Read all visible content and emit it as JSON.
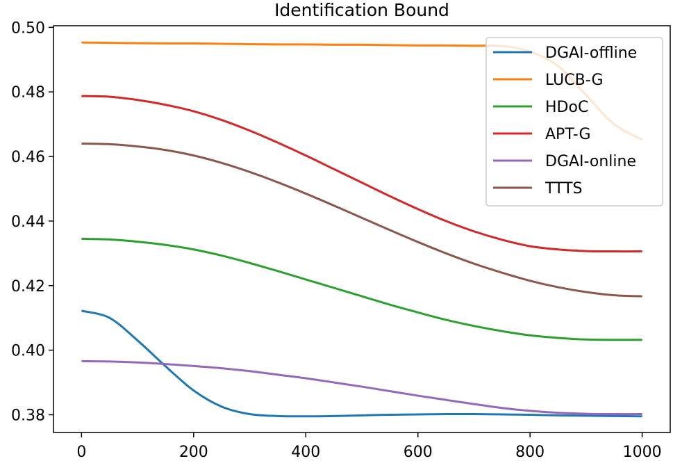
{
  "chart_data": {
    "type": "line",
    "title": "Identification Bound",
    "xlabel": "",
    "ylabel": "",
    "xlim": [
      -50,
      1050
    ],
    "ylim": [
      0.3745,
      0.5005
    ],
    "x_ticks": [
      0,
      200,
      400,
      600,
      800,
      1000
    ],
    "x_tick_labels": [
      "0",
      "200",
      "400",
      "600",
      "800",
      "1000"
    ],
    "y_ticks": [
      0.38,
      0.4,
      0.42,
      0.44,
      0.46,
      0.48,
      0.5
    ],
    "y_tick_labels": [
      "0.38",
      "0.40",
      "0.42",
      "0.44",
      "0.46",
      "0.48",
      "0.50"
    ],
    "grid": false,
    "legend_position": "top-right",
    "x": [
      0,
      50,
      100,
      150,
      200,
      250,
      300,
      350,
      400,
      450,
      500,
      550,
      600,
      650,
      700,
      750,
      800,
      850,
      900,
      950,
      1000
    ],
    "series": [
      {
        "name": "DGAI-offline",
        "color": "#1f77b4",
        "values": [
          0.4122,
          0.41,
          0.403,
          0.395,
          0.3875,
          0.3825,
          0.3802,
          0.3796,
          0.3795,
          0.3796,
          0.3798,
          0.38,
          0.3801,
          0.3802,
          0.3802,
          0.3801,
          0.38,
          0.3798,
          0.3797,
          0.3796,
          0.3795
        ]
      },
      {
        "name": "LUCB-G",
        "color": "#ff7f0e",
        "values": [
          0.4953,
          0.4952,
          0.4951,
          0.495,
          0.495,
          0.4949,
          0.4948,
          0.4947,
          0.4947,
          0.4946,
          0.4946,
          0.4945,
          0.4944,
          0.4944,
          0.4943,
          0.4942,
          0.4925,
          0.488,
          0.479,
          0.47,
          0.4652
        ]
      },
      {
        "name": "HDoC",
        "color": "#2ca02c",
        "values": [
          0.4345,
          0.4343,
          0.4336,
          0.4326,
          0.4312,
          0.4293,
          0.427,
          0.4245,
          0.4219,
          0.4193,
          0.4167,
          0.4141,
          0.4117,
          0.4094,
          0.4075,
          0.4059,
          0.4046,
          0.4038,
          0.4033,
          0.4032,
          0.4032
        ]
      },
      {
        "name": "APT-G",
        "color": "#d62728",
        "values": [
          0.4787,
          0.4785,
          0.4775,
          0.476,
          0.474,
          0.4713,
          0.468,
          0.4643,
          0.4603,
          0.4561,
          0.4519,
          0.4477,
          0.4437,
          0.44,
          0.4368,
          0.4342,
          0.4322,
          0.4312,
          0.4307,
          0.4306,
          0.4306
        ]
      },
      {
        "name": "DGAI-online",
        "color": "#9467bd",
        "values": [
          0.3966,
          0.3965,
          0.3962,
          0.3957,
          0.3951,
          0.3944,
          0.3935,
          0.3924,
          0.3913,
          0.39,
          0.3887,
          0.3873,
          0.3859,
          0.3846,
          0.3833,
          0.3821,
          0.3812,
          0.3806,
          0.3803,
          0.3802,
          0.3802
        ]
      },
      {
        "name": "TTTS",
        "color": "#8c564b",
        "values": [
          0.464,
          0.4638,
          0.4631,
          0.462,
          0.4603,
          0.458,
          0.4552,
          0.452,
          0.4485,
          0.4448,
          0.441,
          0.4372,
          0.4335,
          0.43,
          0.4268,
          0.424,
          0.4215,
          0.4195,
          0.418,
          0.417,
          0.4167
        ]
      }
    ]
  }
}
